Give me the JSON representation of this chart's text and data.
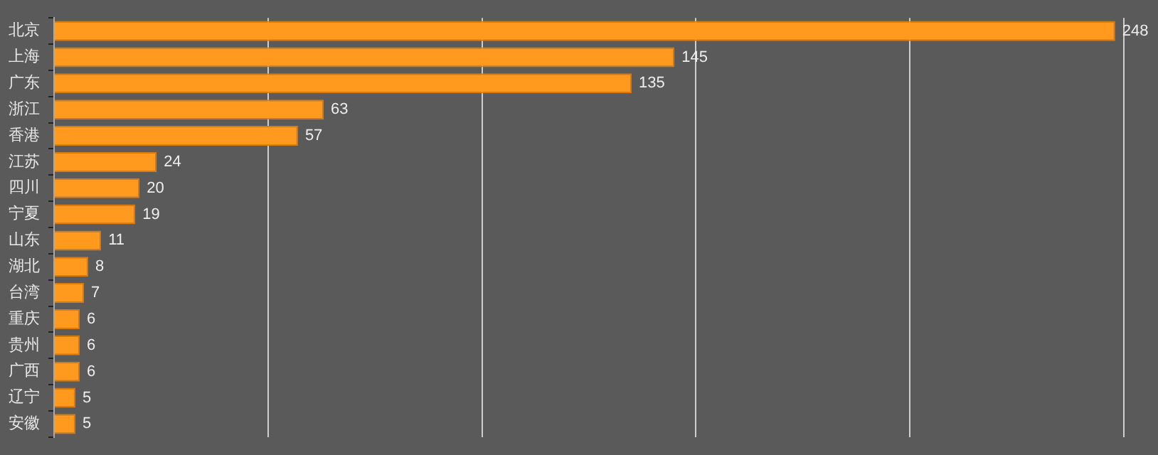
{
  "chart_data": {
    "type": "bar",
    "orientation": "horizontal",
    "categories": [
      "北京",
      "上海",
      "广东",
      "浙江",
      "香港",
      "江苏",
      "四川",
      "宁夏",
      "山东",
      "湖北",
      "台湾",
      "重庆",
      "贵州",
      "广西",
      "辽宁",
      "安徽"
    ],
    "values": [
      248,
      145,
      135,
      63,
      57,
      24,
      20,
      19,
      11,
      8,
      7,
      6,
      6,
      6,
      5,
      5
    ],
    "color": "#ff9a1f",
    "xlim": [
      0,
      258
    ],
    "xticks": [
      {
        "value": 0,
        "label": null
      },
      {
        "value": 50,
        "label": null
      },
      {
        "value": 100,
        "label": null
      },
      {
        "value": 150,
        "label": null
      },
      {
        "value": 200,
        "label": null
      },
      {
        "value": 250,
        "label": null
      }
    ],
    "grid": "x",
    "tick_labels": "y",
    "data_labels": true,
    "legend": false
  }
}
